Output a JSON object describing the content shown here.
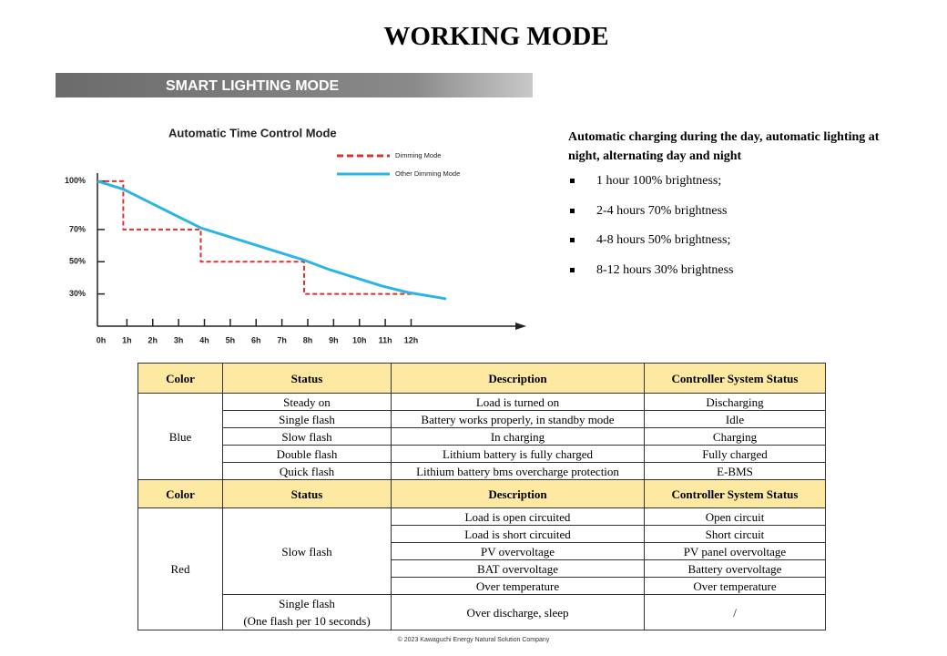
{
  "title": "WORKING MODE",
  "banner": "SMART LIGHTING MODE",
  "chart_data": {
    "type": "line",
    "title": "Automatic Time Control Mode",
    "xlim": [
      0,
      16.6
    ],
    "xticks": [
      {
        "value": 0,
        "label": "0h"
      },
      {
        "value": 1,
        "label": "1h"
      },
      {
        "value": 2,
        "label": "2h"
      },
      {
        "value": 3,
        "label": "3h"
      },
      {
        "value": 4,
        "label": "4h"
      },
      {
        "value": 5,
        "label": "5h"
      },
      {
        "value": 6,
        "label": "6h"
      },
      {
        "value": 7,
        "label": "7h"
      },
      {
        "value": 8,
        "label": "8h"
      },
      {
        "value": 9,
        "label": "9h"
      },
      {
        "value": 10,
        "label": "10h"
      },
      {
        "value": 11,
        "label": "11h"
      },
      {
        "value": 12,
        "label": "12h"
      }
    ],
    "ylim": [
      10,
      105
    ],
    "yticks": [
      {
        "value": 30,
        "label": "30%"
      },
      {
        "value": 50,
        "label": "50%"
      },
      {
        "value": 70,
        "label": "70%"
      },
      {
        "value": 100,
        "label": "100%"
      }
    ],
    "series": [
      {
        "name": "Dimming Mode",
        "color": "#d9342b",
        "dashed": true,
        "x": [
          0,
          1,
          1,
          4,
          4,
          8,
          8,
          12.3
        ],
        "values": [
          100,
          100,
          70,
          70,
          50,
          50,
          30,
          30
        ]
      },
      {
        "name": "Other Dimming Mode",
        "color": "#2bb5e6",
        "dashed": false,
        "x": [
          0,
          1,
          2,
          3,
          4,
          5,
          6,
          7,
          8,
          9,
          10,
          11,
          12,
          13.5
        ],
        "values": [
          100,
          95,
          87,
          79,
          71,
          66,
          61,
          56,
          51,
          45,
          40,
          35,
          31,
          27
        ]
      }
    ]
  },
  "info": {
    "heading": "Automatic charging during the day, automatic lighting at night, alternating day and night",
    "bullets": [
      "1 hour 100% brightness;",
      "2-4 hours 70% brightness",
      "4-8 hours 50% brightness;",
      "8-12 hours 30% brightness"
    ]
  },
  "table": {
    "sections": [
      {
        "header": [
          "Color",
          "Status",
          "Description",
          "Controller System Status"
        ],
        "color": "Blue",
        "rows": [
          [
            "Steady on",
            "Load is turned on",
            "Discharging"
          ],
          [
            "Single flash",
            "Battery works properly, in standby mode",
            "Idle"
          ],
          [
            "Slow flash",
            "In charging",
            "Charging"
          ],
          [
            "Double flash",
            "Lithium battery is fully charged",
            "Fully charged"
          ],
          [
            "Quick flash",
            "Lithium battery bms overcharge protection",
            "E-BMS"
          ]
        ]
      },
      {
        "header": [
          "Color",
          "Status",
          "Description",
          "Controller System Status"
        ],
        "color": "Red",
        "status": "Slow flash",
        "rows": [
          [
            "Load is open circuited",
            "Open circuit"
          ],
          [
            "Load is short circuited",
            "Short circuit"
          ],
          [
            "PV overvoltage",
            "PV panel overvoltage"
          ],
          [
            "BAT overvoltage",
            "Battery overvoltage"
          ],
          [
            "Over temperature",
            "Over temperature"
          ]
        ],
        "last": {
          "status": [
            "Single flash",
            "(One flash per 10 seconds)"
          ],
          "description": "Over discharge, sleep",
          "controller": "/"
        }
      }
    ]
  },
  "footer": "© 2023 Kawaguchi Energy Natural Solution Company"
}
